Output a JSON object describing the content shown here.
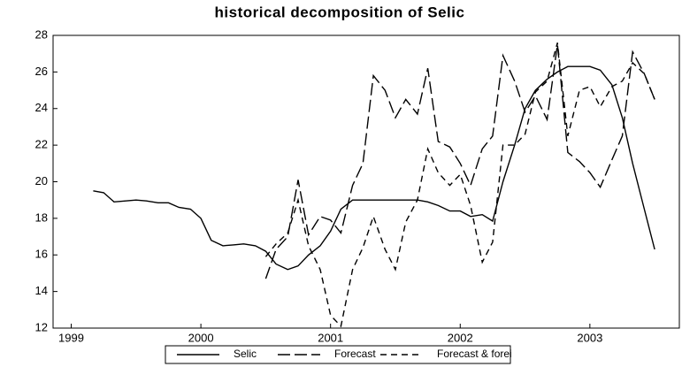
{
  "chart_data": {
    "type": "line",
    "title": "historical decomposition of Selic",
    "x": [
      1999.17,
      1999.25,
      1999.33,
      1999.42,
      1999.5,
      1999.58,
      1999.67,
      1999.75,
      1999.83,
      1999.92,
      2000.0,
      2000.08,
      2000.17,
      2000.25,
      2000.33,
      2000.42,
      2000.5,
      2000.58,
      2000.67,
      2000.75,
      2000.83,
      2000.92,
      2001.0,
      2001.08,
      2001.17,
      2001.25,
      2001.33,
      2001.42,
      2001.5,
      2001.58,
      2001.67,
      2001.75,
      2001.83,
      2001.92,
      2002.0,
      2002.08,
      2002.17,
      2002.25,
      2002.33,
      2002.42,
      2002.5,
      2002.58,
      2002.67,
      2002.75,
      2002.83,
      2002.92,
      2003.0,
      2003.08,
      2003.17,
      2003.25,
      2003.33,
      2003.42,
      2003.5
    ],
    "series": [
      {
        "name": "Selic",
        "color": "#000000",
        "style": "solid",
        "values": [
          19.5,
          19.4,
          18.9,
          18.95,
          19.0,
          18.95,
          18.85,
          18.85,
          18.6,
          18.5,
          18.0,
          16.8,
          16.5,
          16.55,
          16.6,
          16.5,
          16.2,
          15.5,
          15.2,
          15.4,
          16.0,
          16.5,
          17.3,
          18.5,
          19.0,
          19.0,
          19.0,
          19.0,
          19.0,
          19.0,
          19.0,
          18.9,
          18.7,
          18.4,
          18.4,
          18.1,
          18.2,
          17.85,
          20.0,
          22.0,
          24.0,
          25.0,
          25.6,
          26.0,
          26.3,
          26.3,
          26.3,
          26.1,
          25.3,
          23.5,
          21.0,
          18.5,
          16.3
        ]
      },
      {
        "name": "Forecast",
        "color": "#000000",
        "style": "long",
        "values": [
          null,
          null,
          null,
          null,
          null,
          null,
          null,
          null,
          null,
          null,
          null,
          null,
          null,
          null,
          null,
          null,
          14.7,
          16.3,
          17.0,
          20.1,
          17.1,
          18.1,
          17.9,
          17.2,
          19.8,
          21.0,
          25.8,
          25.0,
          23.5,
          24.5,
          23.7,
          26.2,
          22.2,
          21.9,
          21.0,
          19.8,
          21.8,
          22.5,
          26.9,
          25.5,
          23.8,
          24.7,
          23.4,
          27.5,
          21.6,
          21.1,
          20.5,
          19.7,
          21.2,
          22.5,
          27.1,
          25.9,
          24.5
        ]
      },
      {
        "name": "Forecast & forei",
        "color": "#000000",
        "style": "short",
        "values": [
          null,
          null,
          null,
          null,
          null,
          null,
          null,
          null,
          null,
          null,
          null,
          null,
          null,
          null,
          null,
          null,
          15.9,
          16.6,
          17.2,
          19.0,
          16.5,
          15.2,
          12.7,
          12.1,
          15.2,
          16.4,
          18.1,
          16.3,
          15.2,
          17.8,
          19.0,
          21.8,
          20.5,
          19.8,
          20.4,
          18.7,
          15.6,
          16.7,
          22.0,
          22.0,
          22.6,
          24.9,
          25.5,
          27.6,
          22.5,
          25.0,
          25.2,
          24.1,
          25.2,
          25.5,
          26.5,
          25.9,
          24.5
        ]
      }
    ],
    "xlim": [
      1998.86,
      2003.69
    ],
    "xticks": [
      1999,
      2000,
      2001,
      2002,
      2003
    ],
    "ylim": [
      12,
      28
    ],
    "yticks": [
      12,
      14,
      16,
      18,
      20,
      22,
      24,
      26,
      28
    ]
  }
}
